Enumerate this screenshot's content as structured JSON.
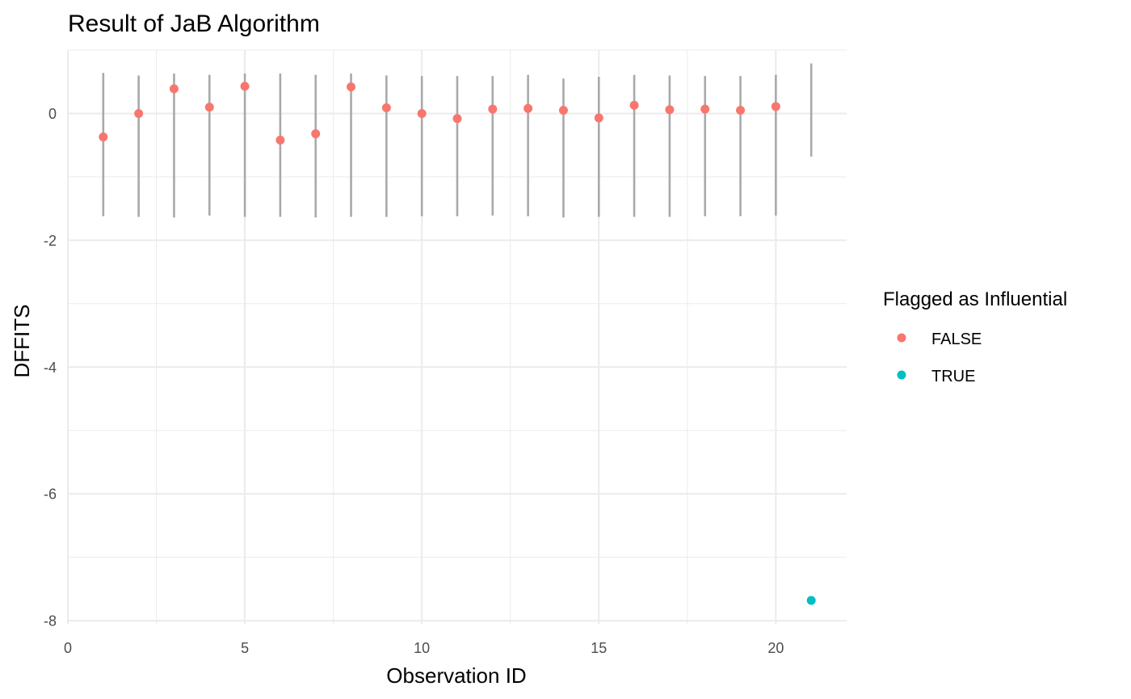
{
  "chart_data": {
    "type": "scatter",
    "title": "Result of JaB Algorithm",
    "xlabel": "Observation ID",
    "ylabel": "DFFITS",
    "xlim": [
      0,
      22
    ],
    "ylim": [
      -8.05,
      1.0
    ],
    "x_ticks": [
      0,
      5,
      10,
      15,
      20
    ],
    "y_ticks": [
      -8,
      -6,
      -4,
      -2,
      0
    ],
    "x_minor_ticks": [
      2.5,
      7.5,
      12.5,
      17.5
    ],
    "y_minor_ticks": [
      -7,
      -5,
      -3,
      -1,
      1
    ],
    "grid": true,
    "points": [
      {
        "id": 1,
        "dffits": -0.37,
        "flagged": "FALSE"
      },
      {
        "id": 2,
        "dffits": 0.0,
        "flagged": "FALSE"
      },
      {
        "id": 3,
        "dffits": 0.39,
        "flagged": "FALSE"
      },
      {
        "id": 4,
        "dffits": 0.1,
        "flagged": "FALSE"
      },
      {
        "id": 5,
        "dffits": 0.43,
        "flagged": "FALSE"
      },
      {
        "id": 6,
        "dffits": -0.42,
        "flagged": "FALSE"
      },
      {
        "id": 7,
        "dffits": -0.32,
        "flagged": "FALSE"
      },
      {
        "id": 8,
        "dffits": 0.42,
        "flagged": "FALSE"
      },
      {
        "id": 9,
        "dffits": 0.09,
        "flagged": "FALSE"
      },
      {
        "id": 10,
        "dffits": 0.0,
        "flagged": "FALSE"
      },
      {
        "id": 11,
        "dffits": -0.08,
        "flagged": "FALSE"
      },
      {
        "id": 12,
        "dffits": 0.07,
        "flagged": "FALSE"
      },
      {
        "id": 13,
        "dffits": 0.08,
        "flagged": "FALSE"
      },
      {
        "id": 14,
        "dffits": 0.05,
        "flagged": "FALSE"
      },
      {
        "id": 15,
        "dffits": -0.07,
        "flagged": "FALSE"
      },
      {
        "id": 16,
        "dffits": 0.13,
        "flagged": "FALSE"
      },
      {
        "id": 17,
        "dffits": 0.06,
        "flagged": "FALSE"
      },
      {
        "id": 18,
        "dffits": 0.07,
        "flagged": "FALSE"
      },
      {
        "id": 19,
        "dffits": 0.05,
        "flagged": "FALSE"
      },
      {
        "id": 20,
        "dffits": 0.11,
        "flagged": "FALSE"
      },
      {
        "id": 21,
        "dffits": -7.68,
        "flagged": "TRUE"
      }
    ],
    "intervals": [
      {
        "id": 1,
        "low": -1.62,
        "high": 0.64
      },
      {
        "id": 2,
        "low": -1.63,
        "high": 0.6
      },
      {
        "id": 3,
        "low": -1.64,
        "high": 0.63
      },
      {
        "id": 4,
        "low": -1.61,
        "high": 0.61
      },
      {
        "id": 5,
        "low": -1.63,
        "high": 0.63
      },
      {
        "id": 6,
        "low": -1.63,
        "high": 0.63
      },
      {
        "id": 7,
        "low": -1.64,
        "high": 0.61
      },
      {
        "id": 8,
        "low": -1.63,
        "high": 0.63
      },
      {
        "id": 9,
        "low": -1.63,
        "high": 0.6
      },
      {
        "id": 10,
        "low": -1.62,
        "high": 0.59
      },
      {
        "id": 11,
        "low": -1.62,
        "high": 0.59
      },
      {
        "id": 12,
        "low": -1.61,
        "high": 0.59
      },
      {
        "id": 13,
        "low": -1.62,
        "high": 0.61
      },
      {
        "id": 14,
        "low": -1.64,
        "high": 0.55
      },
      {
        "id": 15,
        "low": -1.63,
        "high": 0.58
      },
      {
        "id": 16,
        "low": -1.63,
        "high": 0.61
      },
      {
        "id": 17,
        "low": -1.63,
        "high": 0.6
      },
      {
        "id": 18,
        "low": -1.62,
        "high": 0.59
      },
      {
        "id": 19,
        "low": -1.62,
        "high": 0.59
      },
      {
        "id": 20,
        "low": -1.61,
        "high": 0.61
      },
      {
        "id": 21,
        "low": -0.68,
        "high": 0.79
      }
    ],
    "legend": {
      "title": "Flagged as Influential",
      "position": "right",
      "entries": [
        {
          "label": "FALSE",
          "color": "#f8766d"
        },
        {
          "label": "TRUE",
          "color": "#00bfc4"
        }
      ]
    },
    "interval_color": "#a9a9a9"
  }
}
